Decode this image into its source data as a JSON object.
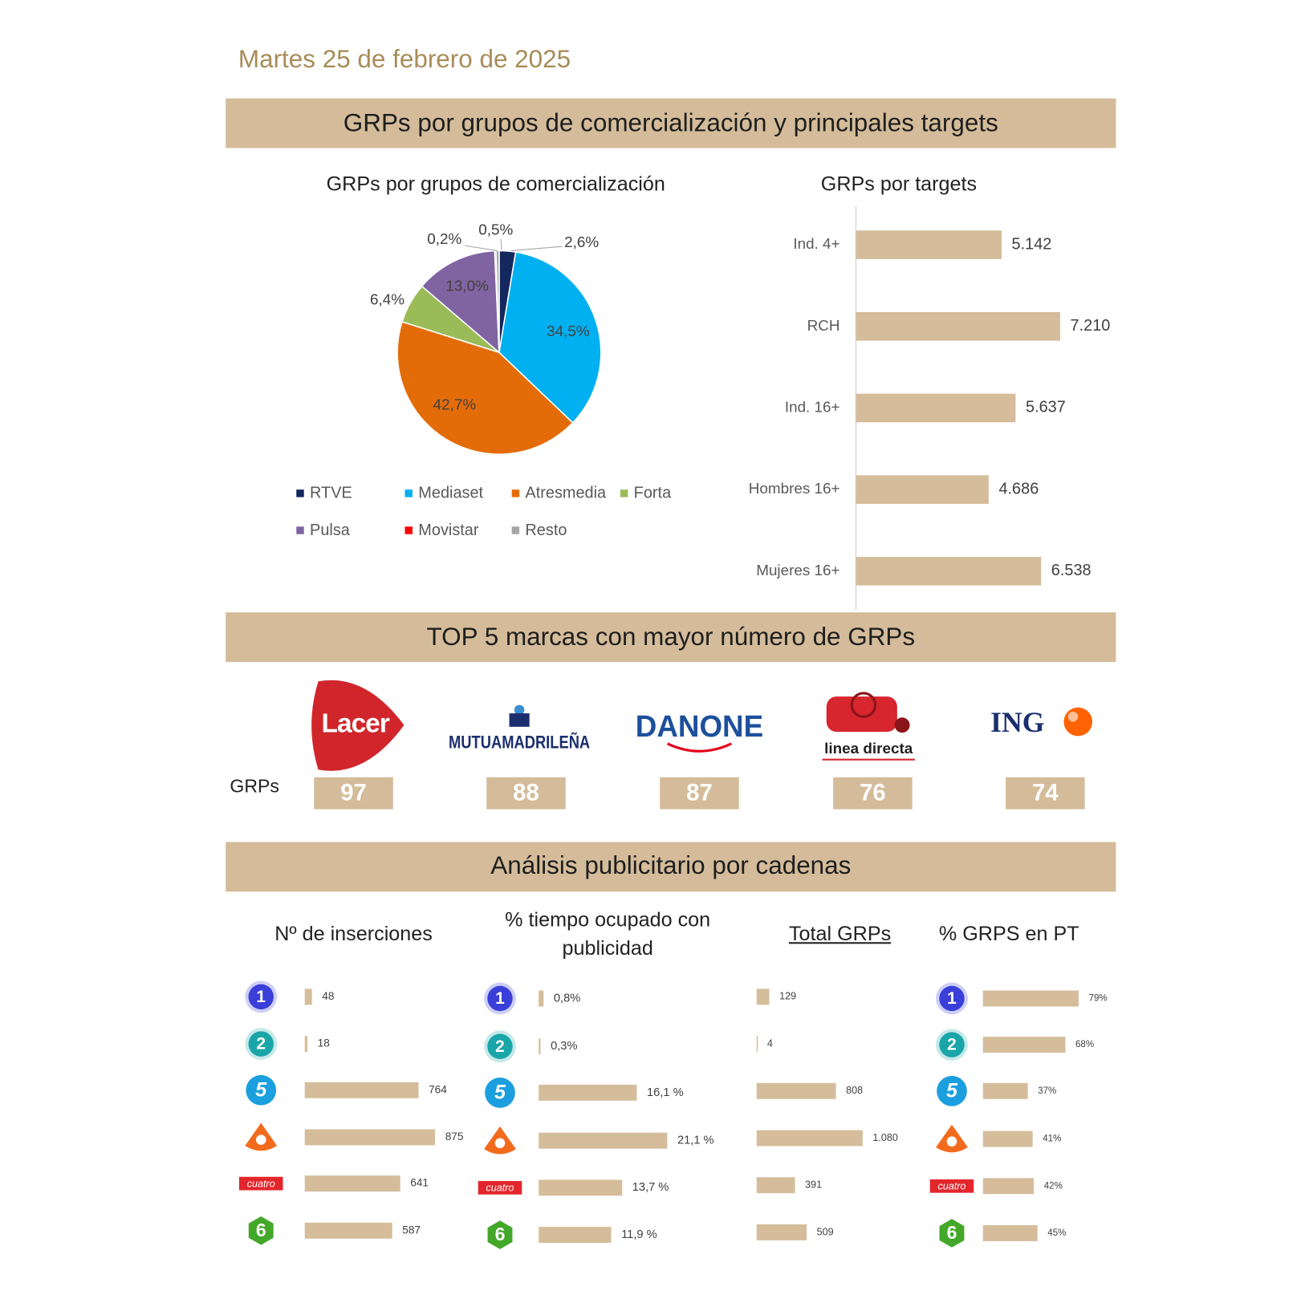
{
  "date": "Martes 25 de febrero de 2025",
  "sections": [
    "GRPs por grupos de comercialización y principales targets",
    "TOP 5 marcas con mayor número de GRPs",
    "Análisis publicitario por cadenas"
  ],
  "chart_data": [
    {
      "type": "pie",
      "title": "GRPs por grupos de comercialización",
      "categories": [
        "RTVE",
        "Mediaset",
        "Atresmedia",
        "Forta",
        "Pulsa",
        "Movistar",
        "Resto"
      ],
      "values": [
        2.6,
        34.5,
        42.7,
        6.4,
        13.0,
        0.2,
        0.5
      ],
      "value_labels": [
        "2,6%",
        "34,5%",
        "42,7%",
        "6,4%",
        "13,0%",
        "0,2%",
        "0,5%"
      ],
      "colors": [
        "#14275e",
        "#00b0f0",
        "#e36c09",
        "#9bbb59",
        "#8064a2",
        "#ff0000",
        "#a5a5a5"
      ],
      "legend": "bottom"
    },
    {
      "type": "hbar",
      "title": "GRPs por targets",
      "categories": [
        "Ind. 4+",
        "RCH",
        "Ind. 16+",
        "Hombres 16+",
        "Mujeres 16+"
      ],
      "values": [
        5142,
        7210,
        5637,
        4686,
        6538
      ],
      "value_labels": [
        "5.142",
        "7.210",
        "5.637",
        "4.686",
        "6.538"
      ],
      "color": "#d5bd9b",
      "xlim": [
        0,
        9000
      ]
    },
    {
      "type": "hbar",
      "title": "Nº de inserciones",
      "categories": [
        "1",
        "2",
        "5",
        null,
        "cuatro",
        "6"
      ],
      "values": [
        48,
        18,
        764,
        875,
        641,
        587
      ],
      "color": "#d5bd9b",
      "xlim": [
        0,
        1000
      ]
    },
    {
      "type": "hbar",
      "title": "% tiempo ocupado con publicidad",
      "categories": [
        "1",
        "2",
        "5",
        null,
        "cuatro",
        "6"
      ],
      "values": [
        0.8,
        0.3,
        16.1,
        21.1,
        13.7,
        11.9
      ],
      "value_labels": [
        "0,8%",
        "0,3%",
        "16,1 %",
        "21,1 %",
        "13,7 %",
        "11,9 %"
      ],
      "color": "#d5bd9b",
      "xlim": [
        0,
        25
      ]
    },
    {
      "type": "hbar",
      "title": "Total GRPs",
      "values": [
        129,
        4,
        808,
        1080,
        391,
        509
      ],
      "value_labels": [
        "129",
        "4",
        "808",
        "1.080",
        "391",
        "509"
      ],
      "color": "#d5bd9b",
      "xlim": [
        0,
        1500
      ]
    },
    {
      "type": "hbar",
      "title": "% GRPS en PT",
      "categories": [
        "1",
        "2",
        "5",
        null,
        "cuatro",
        "6"
      ],
      "values": [
        79,
        68,
        37,
        41,
        42,
        45
      ],
      "value_labels": [
        "79%",
        "68%",
        "37%",
        "41%",
        "42%",
        "45%"
      ],
      "color": "#d5bd9b",
      "xlim": [
        0,
        100
      ]
    }
  ],
  "brands": {
    "label": "GRPs",
    "names": [
      "Lacer",
      "MUTUAMADRILEÑA",
      "DANONE",
      "linea directa",
      "ING"
    ],
    "grps": [
      97,
      88,
      87,
      76,
      74
    ]
  }
}
